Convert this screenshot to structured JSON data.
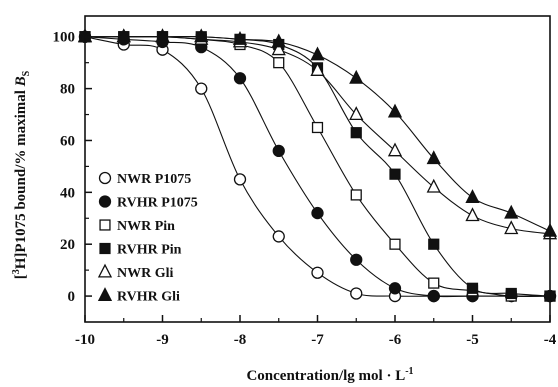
{
  "chart_data": {
    "type": "line",
    "title": "",
    "xlabel": "Concentration/lg mol · L",
    "xlabel_superscript": "-1",
    "ylabel_prefix": "[",
    "ylabel_superscript": "3",
    "ylabel_main": "H]P1075 bound/% maximal ",
    "ylabel_italic": "B",
    "ylabel_subscript": "S",
    "xlim": [
      -10,
      -4
    ],
    "ylim": [
      -10,
      108
    ],
    "xticks": [
      -10,
      -9,
      -8,
      -7,
      -6,
      -5,
      -4
    ],
    "xtick_labels": [
      "-10",
      "-9",
      "-8",
      "-7",
      "-6",
      "-5",
      "-4"
    ],
    "yticks": [
      0,
      20,
      40,
      60,
      80,
      100
    ],
    "ytick_labels": [
      "0",
      "20",
      "40",
      "60",
      "80",
      "100"
    ],
    "grid": false,
    "legend_position": "bottom-left",
    "series": [
      {
        "name": "NWR P1075",
        "marker": "circle",
        "filled": false,
        "x": [
          -10,
          -9.5,
          -9,
          -8.5,
          -8,
          -7.5,
          -7,
          -6.5,
          -6,
          -5.5,
          -5,
          -4.5,
          -4
        ],
        "y": [
          100,
          97,
          95,
          80,
          45,
          23,
          9,
          1,
          0,
          0,
          0,
          0,
          0
        ]
      },
      {
        "name": "RVHR P1075",
        "marker": "circle",
        "filled": true,
        "x": [
          -10,
          -9.5,
          -9,
          -8.5,
          -8,
          -7.5,
          -7,
          -6.5,
          -6,
          -5.5,
          -5,
          -4.5,
          -4
        ],
        "y": [
          100,
          99,
          98,
          96,
          84,
          56,
          32,
          14,
          3,
          0,
          0,
          0,
          0
        ]
      },
      {
        "name": "NWR Pin",
        "marker": "square",
        "filled": false,
        "x": [
          -10,
          -9.5,
          -9,
          -8.5,
          -8,
          -7.5,
          -7,
          -6.5,
          -6,
          -5.5,
          -5,
          -4.5,
          -4
        ],
        "y": [
          100,
          100,
          100,
          99,
          97,
          90,
          65,
          39,
          20,
          5,
          2,
          0,
          0
        ]
      },
      {
        "name": "RVHR Pin",
        "marker": "square",
        "filled": true,
        "x": [
          -10,
          -9.5,
          -9,
          -8.5,
          -8,
          -7.5,
          -7,
          -6.5,
          -6,
          -5.5,
          -5,
          -4.5,
          -4
        ],
        "y": [
          100,
          100,
          100,
          100,
          99,
          97,
          88,
          63,
          47,
          20,
          3,
          1,
          0
        ]
      },
      {
        "name": "NWR Gli",
        "marker": "triangle",
        "filled": false,
        "x": [
          -10,
          -9.5,
          -9,
          -8.5,
          -8,
          -7.5,
          -7,
          -6.5,
          -6,
          -5.5,
          -5,
          -4.5,
          -4
        ],
        "y": [
          100,
          100,
          100,
          99,
          98,
          95,
          87,
          70,
          56,
          42,
          31,
          26,
          24
        ]
      },
      {
        "name": "RVHR Gli",
        "marker": "triangle",
        "filled": true,
        "x": [
          -10,
          -9.5,
          -9,
          -8.5,
          -8,
          -7.5,
          -7,
          -6.5,
          -6,
          -5.5,
          -5,
          -4.5,
          -4
        ],
        "y": [
          100,
          100,
          100,
          100,
          99,
          98,
          93,
          84,
          71,
          53,
          38,
          32,
          25
        ]
      }
    ]
  }
}
